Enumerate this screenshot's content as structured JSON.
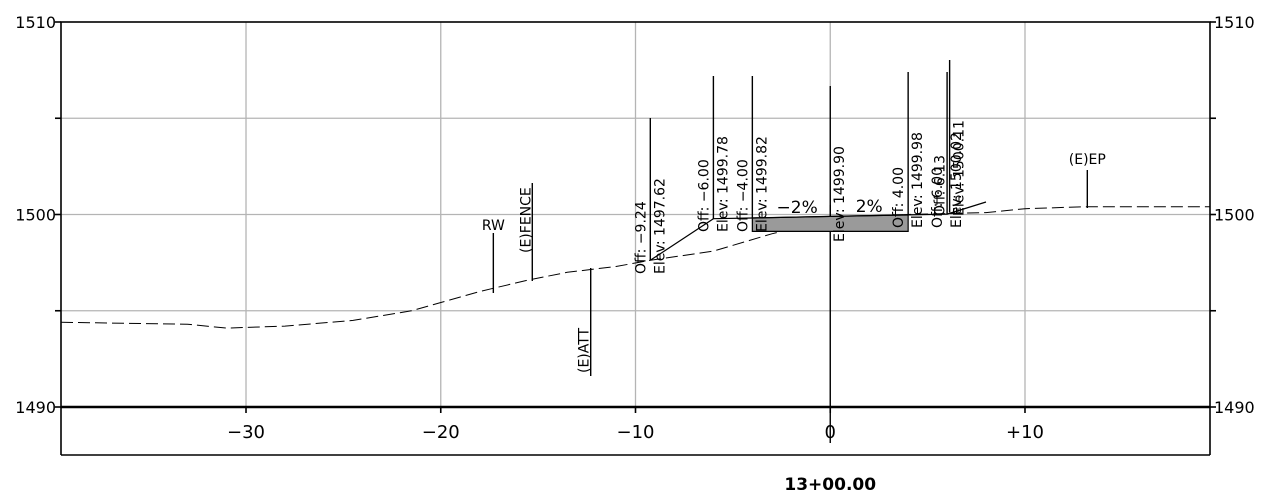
{
  "section": {
    "station": "13+00.00",
    "elevation_axis": {
      "ticks": [
        "1490",
        "1500",
        "1510"
      ],
      "range": [
        1490,
        1510
      ],
      "minor_gridline_elevations": [
        1495,
        1505
      ]
    },
    "offset_axis": {
      "ticks": [
        "−30",
        "−20",
        "−10",
        "0",
        "+10"
      ],
      "tick_values": [
        -30,
        -20,
        -10,
        0,
        10
      ],
      "range": [
        -39.5,
        19.5
      ]
    },
    "grid": true
  },
  "labels": {
    "rw": "RW",
    "fence": "(E)FENCE",
    "att": "(E)ATT",
    "ep": "(E)EP"
  },
  "point_callouts": [
    {
      "off": "Off: −9.24",
      "elev": "Elev: 1497.62",
      "offset": -9.24,
      "elevation": 1497.62
    },
    {
      "off": "Off: −6.00",
      "elev": "Elev: 1499.78",
      "offset": -6.0,
      "elevation": 1499.78
    },
    {
      "off": "Off: −4.00",
      "elev": "Elev: 1499.82",
      "offset": -4.0,
      "elevation": 1499.82
    },
    {
      "off": "",
      "elev": "Elev: 1499.90",
      "offset": 0,
      "elevation": 1499.9
    },
    {
      "off": "Off: 4.00",
      "elev": "Elev: 1499.98",
      "offset": 4.0,
      "elevation": 1499.98
    },
    {
      "off": "Off: 6.00",
      "elev": "Elev: 1500.02",
      "offset": 6.0,
      "elevation": 1500.02
    },
    {
      "off": "Off: 6.13",
      "elev": "Elev: 1500.11",
      "offset": 6.13,
      "elevation": 1500.11
    }
  ],
  "slopes": {
    "left": "−2%",
    "right": "2%"
  },
  "existing_ground": [
    [
      -39.5,
      1494.4
    ],
    [
      -33,
      1494.3
    ],
    [
      -31,
      1494.1
    ],
    [
      -28,
      1494.2
    ],
    [
      -24.5,
      1494.5
    ],
    [
      -21.5,
      1495.0
    ],
    [
      -18,
      1496.0
    ],
    [
      -15.5,
      1496.6
    ],
    [
      -13.5,
      1497.0
    ],
    [
      -11,
      1497.3
    ],
    [
      -9.24,
      1497.62
    ],
    [
      -6,
      1498.1
    ],
    [
      -3,
      1499.0
    ],
    [
      0,
      1499.7
    ],
    [
      4,
      1500.0
    ],
    [
      8,
      1500.1
    ],
    [
      10,
      1500.3
    ],
    [
      13,
      1500.4
    ],
    [
      19.5,
      1500.4
    ]
  ],
  "proposed_profile": [
    [
      -9.24,
      1497.62
    ],
    [
      -6.0,
      1499.78
    ],
    [
      -4.0,
      1499.82
    ],
    [
      0,
      1499.9
    ],
    [
      4.0,
      1499.98
    ],
    [
      6.0,
      1500.02
    ],
    [
      8.0,
      1500.65
    ]
  ],
  "pavement_section": {
    "offset_range": [
      -4.0,
      4.0
    ],
    "top_elevation": 1499.9,
    "depth": 0.7,
    "fill_color": "#9a9a9a"
  },
  "existing_features": [
    {
      "key": "rw",
      "offset": -17.3
    },
    {
      "key": "fence",
      "offset": -15.3
    },
    {
      "key": "att",
      "offset": -12.3
    },
    {
      "key": "ep",
      "offset": 13.2
    }
  ]
}
